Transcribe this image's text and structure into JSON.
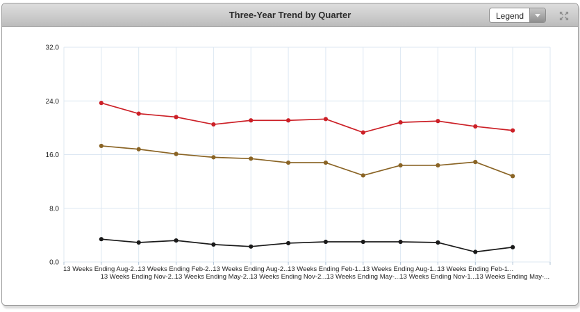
{
  "header": {
    "title": "Three-Year Trend by Quarter",
    "legend_dropdown": {
      "value": "Legend"
    },
    "expand_icon": "expand-arrows-icon"
  },
  "colors": {
    "grid": "#dce7f2",
    "tick": "#aec2d6",
    "axis_label": "#222222",
    "series_red": "#cc2027",
    "series_olive": "#8a6425",
    "series_black": "#1a1a1a"
  },
  "chart_data": {
    "type": "line",
    "title": "Three-Year Trend by Quarter",
    "categories": [
      "13 Weeks Ending Aug-2...",
      "13 Weeks Ending Nov-2...",
      "13 Weeks Ending Feb-2...",
      "13 Weeks Ending May-2...",
      "13 Weeks Ending Aug-2...",
      "13 Weeks Ending Nov-2...",
      "13 Weeks Ending Feb-1...",
      "13 Weeks Ending May-...",
      "13 Weeks Ending Aug-1...",
      "13 Weeks Ending Nov-1...",
      "13 Weeks Ending Feb-1...",
      "13 Weeks Ending May-..."
    ],
    "series": [
      {
        "name": "red",
        "color": "#cc2027",
        "values": [
          23.7,
          22.1,
          21.6,
          20.5,
          21.1,
          21.1,
          21.3,
          19.3,
          20.8,
          21.0,
          20.2,
          19.6
        ]
      },
      {
        "name": "olive",
        "color": "#8a6425",
        "values": [
          17.3,
          16.8,
          16.1,
          15.6,
          15.4,
          14.8,
          14.8,
          12.9,
          14.4,
          14.4,
          14.9,
          12.8
        ]
      },
      {
        "name": "black",
        "color": "#1a1a1a",
        "values": [
          3.4,
          2.9,
          3.2,
          2.6,
          2.3,
          2.8,
          3.0,
          3.0,
          3.0,
          2.9,
          1.5,
          2.2
        ]
      }
    ],
    "y_ticks": [
      "0.0",
      "8.0",
      "16.0",
      "24.0",
      "32.0"
    ],
    "ylim": [
      0,
      32
    ],
    "xlabel": "",
    "ylabel": "",
    "grid": true,
    "legend_position": "collapsed-dropdown",
    "x_label_layout": "staggered-two-rows"
  }
}
